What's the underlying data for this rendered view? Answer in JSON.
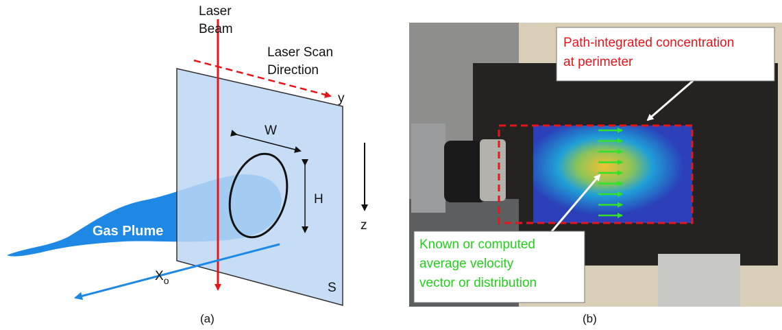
{
  "panel_a": {
    "laser_beam": [
      "Laser",
      "Beam"
    ],
    "scan_direction": [
      "Laser Scan",
      "Direction"
    ],
    "y_axis": "y",
    "width": "W",
    "height": "H",
    "z_axis": "z",
    "plume": "Gas Plume",
    "x_offset": {
      "main": "X",
      "sub": "o"
    },
    "plane": "S",
    "caption": "(a)"
  },
  "panel_b": {
    "perimeter_callout": [
      "Path-integrated concentration",
      "at perimeter"
    ],
    "velocity_callout": [
      "Known or computed",
      "average velocity",
      "vector or distribution"
    ],
    "caption": "(b)"
  }
}
